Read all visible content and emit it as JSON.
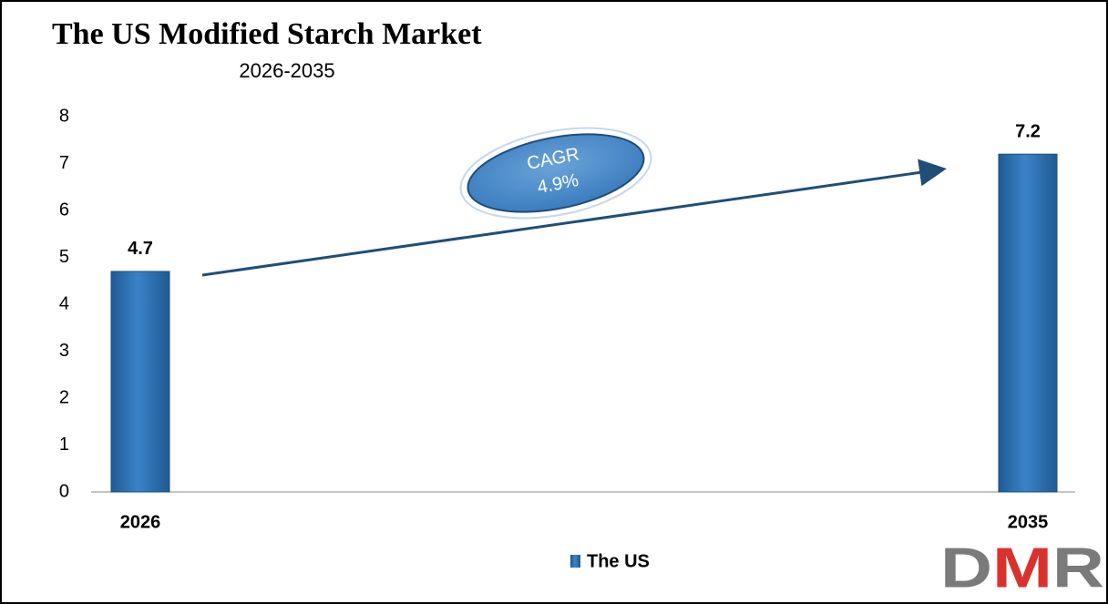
{
  "chart_data": {
    "type": "bar",
    "title": "The US Modified Starch Market",
    "subtitle": "2026-2035",
    "categories": [
      "2026",
      "2035"
    ],
    "series": [
      {
        "name": "The US",
        "color": "#2e75b6",
        "values": [
          4.7,
          7.2
        ]
      }
    ],
    "ylim": [
      0,
      8
    ],
    "yticks": [
      0,
      1,
      2,
      3,
      4,
      5,
      6,
      7,
      8
    ],
    "grid": false,
    "legend": "bottom",
    "annotations": [
      "CAGR",
      "4.9%"
    ],
    "logo": "DMR"
  }
}
